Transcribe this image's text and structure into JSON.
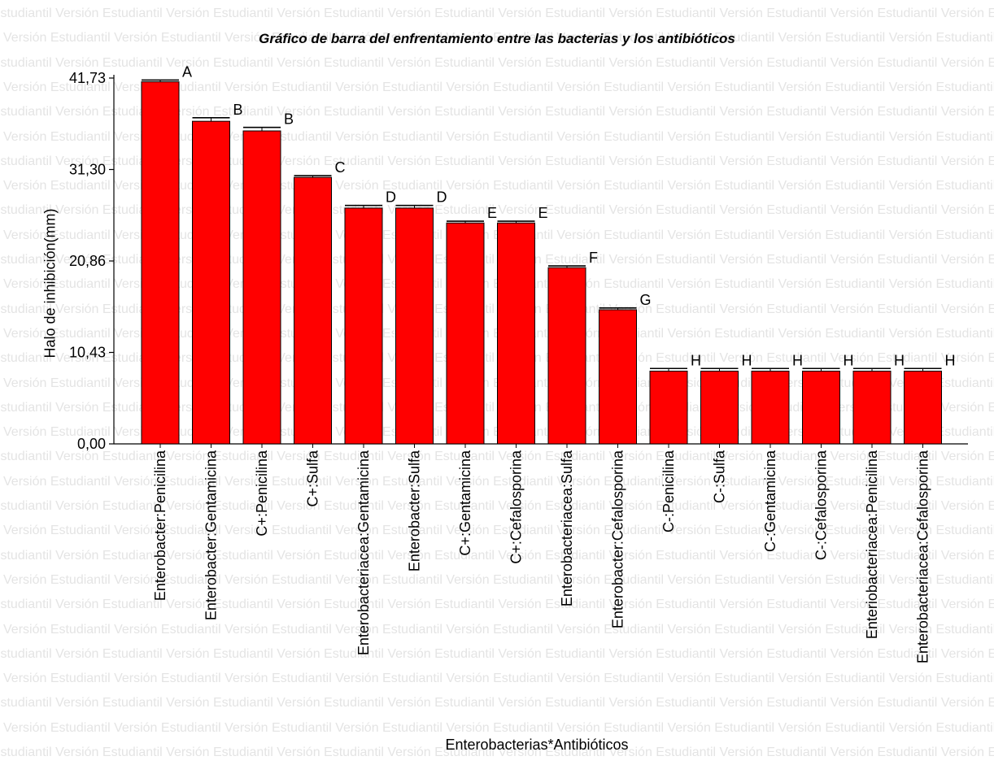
{
  "watermark": {
    "text": "Versión Estudiantil"
  },
  "chart_data": {
    "type": "bar",
    "title": "Gráfico de barra del enfrentamiento entre las bacterias y los antibióticos",
    "xlabel": "Enterobacterias*Antibióticos",
    "ylabel": "Halo de inhibición(mm)",
    "ylim": [
      0,
      41.73
    ],
    "yticks": [
      "0,00",
      "10,43",
      "20,86",
      "31,30",
      "41,73"
    ],
    "bar_color": "#ff0000",
    "grid": false,
    "categories": [
      "Enterobacter:Penicilina",
      "Enterobacter:Gentamicina",
      "C+:Penicilina",
      "C+:Sulfa",
      "Enterobacteriacea:Gentamicina",
      "Enterobacter:Sulfa",
      "C+:Gentamicina",
      "C+:Cefalosporina",
      "Enterobacteriacea:Sulfa",
      "Enterobacter:Cefalosporina",
      "C-:Penicilina",
      "C-:Sulfa",
      "C-:Gentamicina",
      "C-:Cefalosporina",
      "Enteriobacteriacea:Penicilina",
      "Enterobacteriacea:Cefalosporina"
    ],
    "values": [
      41.3,
      36.8,
      35.7,
      30.4,
      26.9,
      26.9,
      25.2,
      25.2,
      20.1,
      15.3,
      8.3,
      8.3,
      8.3,
      8.3,
      8.3,
      8.3
    ],
    "errors": [
      0.2,
      0.4,
      0.4,
      0.2,
      0.3,
      0.3,
      0.2,
      0.2,
      0.2,
      0.2,
      0.3,
      0.3,
      0.3,
      0.3,
      0.3,
      0.3
    ],
    "labels": [
      "A",
      "B",
      "B",
      "C",
      "D",
      "D",
      "E",
      "E",
      "F",
      "G",
      "H",
      "H",
      "H",
      "H",
      "H",
      "H"
    ]
  }
}
